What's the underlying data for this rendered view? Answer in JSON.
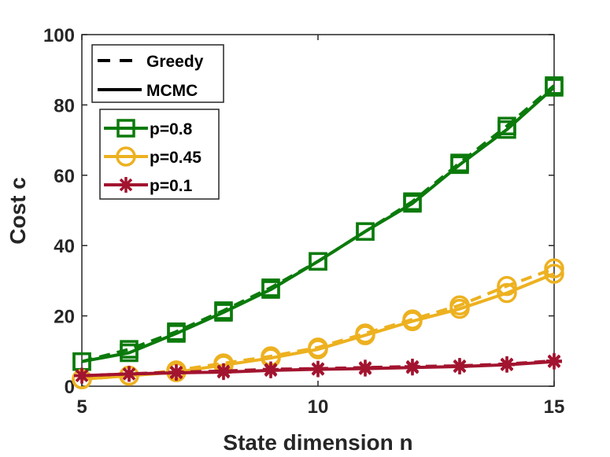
{
  "chart_data": {
    "type": "line",
    "xlabel": "State dimension n",
    "ylabel": "Cost c",
    "xlim": [
      5,
      15
    ],
    "ylim": [
      0,
      100
    ],
    "xticks": [
      5,
      10,
      15
    ],
    "yticks": [
      0,
      20,
      40,
      60,
      80,
      100
    ],
    "xtick_labels": [
      "5",
      "10",
      "15"
    ],
    "ytick_labels": [
      "0",
      "20",
      "40",
      "60",
      "80",
      "100"
    ],
    "grid": false,
    "legend_style": {
      "position": "top-left",
      "entries": [
        {
          "label": "Greedy",
          "dash": "dashed"
        },
        {
          "label": "MCMC",
          "dash": "solid"
        }
      ]
    },
    "legend_p": {
      "position": "top-left",
      "entries": [
        {
          "label": "p=0.8",
          "color": "#0b7a0b",
          "marker": "square"
        },
        {
          "label": "p=0.45",
          "color": "#edb120",
          "marker": "circle"
        },
        {
          "label": "p=0.1",
          "color": "#a2142f",
          "marker": "asterisk"
        }
      ]
    },
    "x": [
      5,
      6,
      7,
      8,
      9,
      10,
      11,
      12,
      13,
      14,
      15
    ],
    "series": [
      {
        "name": "Greedy p=0.8",
        "method": "Greedy",
        "color": "#0b7a0b",
        "marker": "square",
        "dash": "dashed",
        "values": [
          7.0,
          10.5,
          15.5,
          21.5,
          28.0,
          35.5,
          44.0,
          52.5,
          63.5,
          74.0,
          85.5
        ]
      },
      {
        "name": "MCMC p=0.8",
        "method": "MCMC",
        "color": "#0b7a0b",
        "marker": "square",
        "dash": "solid",
        "values": [
          7.0,
          9.5,
          15.0,
          21.0,
          27.5,
          35.5,
          44.0,
          52.0,
          63.0,
          73.0,
          85.0
        ]
      },
      {
        "name": "Greedy p=0.45",
        "method": "Greedy",
        "color": "#edb120",
        "marker": "circle",
        "dash": "dashed",
        "values": [
          2.0,
          3.0,
          4.5,
          6.5,
          8.5,
          11.0,
          15.0,
          19.0,
          23.0,
          28.5,
          33.5
        ]
      },
      {
        "name": "MCMC p=0.45",
        "method": "MCMC",
        "color": "#edb120",
        "marker": "circle",
        "dash": "solid",
        "values": [
          2.0,
          3.0,
          4.0,
          6.0,
          8.0,
          10.5,
          14.5,
          18.5,
          22.0,
          26.5,
          32.0
        ]
      },
      {
        "name": "Greedy p=0.1",
        "method": "Greedy",
        "color": "#a2142f",
        "marker": "asterisk",
        "dash": "dashed",
        "values": [
          3.0,
          3.5,
          4.0,
          4.3,
          4.8,
          5.0,
          5.3,
          5.6,
          5.8,
          6.3,
          7.2
        ]
      },
      {
        "name": "MCMC p=0.1",
        "method": "MCMC",
        "color": "#a2142f",
        "marker": "asterisk",
        "dash": "solid",
        "values": [
          3.0,
          3.5,
          3.8,
          4.0,
          4.5,
          4.8,
          5.0,
          5.3,
          5.6,
          6.1,
          7.0
        ]
      }
    ]
  }
}
